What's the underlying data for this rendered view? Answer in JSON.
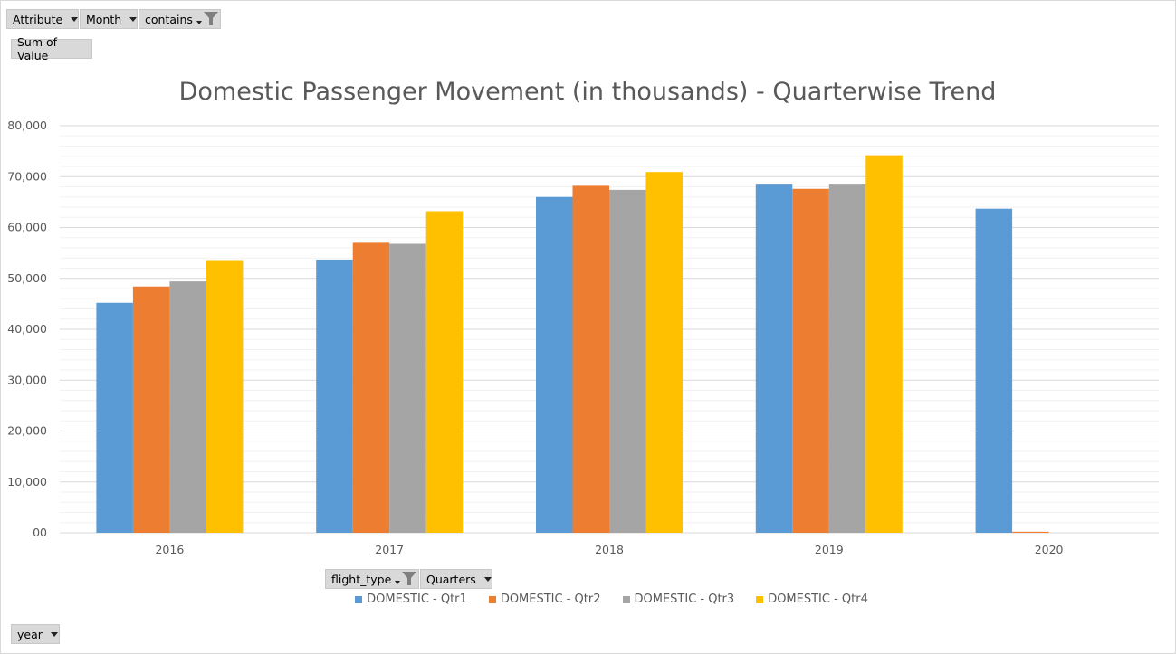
{
  "filters": {
    "attribute_label": "Attribute",
    "month_label": "Month",
    "contains_label": "contains",
    "sum_label": "Sum of Value",
    "flight_type_label": "flight_type",
    "quarters_label": "Quarters",
    "year_label": "year"
  },
  "colors": {
    "qtr1": "#5b9bd5",
    "qtr2": "#ed7d31",
    "qtr3": "#a5a5a5",
    "qtr4": "#ffc000"
  },
  "chart_data": {
    "type": "bar",
    "title": "Domestic Passenger Movement (in thousands) - Quarterwise Trend",
    "xlabel": "",
    "ylabel": "",
    "categories": [
      "2016",
      "2017",
      "2018",
      "2019",
      "2020"
    ],
    "ylim": [
      0,
      80000
    ],
    "yticks": [
      0,
      10000,
      20000,
      30000,
      40000,
      50000,
      60000,
      70000,
      80000
    ],
    "ytick_labels": [
      "00",
      "10,000",
      "20,000",
      "30,000",
      "40,000",
      "50,000",
      "60,000",
      "70,000",
      "80,000"
    ],
    "grid": true,
    "legend_position": "bottom",
    "series": [
      {
        "name": "DOMESTIC - Qtr1",
        "values": [
          45200,
          53700,
          66000,
          68600,
          63700
        ]
      },
      {
        "name": "DOMESTIC - Qtr2",
        "values": [
          48400,
          57000,
          68200,
          67600,
          200
        ]
      },
      {
        "name": "DOMESTIC - Qtr3",
        "values": [
          49400,
          56800,
          67400,
          68600,
          null
        ]
      },
      {
        "name": "DOMESTIC - Qtr4",
        "values": [
          53600,
          63200,
          70900,
          74200,
          null
        ]
      }
    ]
  }
}
